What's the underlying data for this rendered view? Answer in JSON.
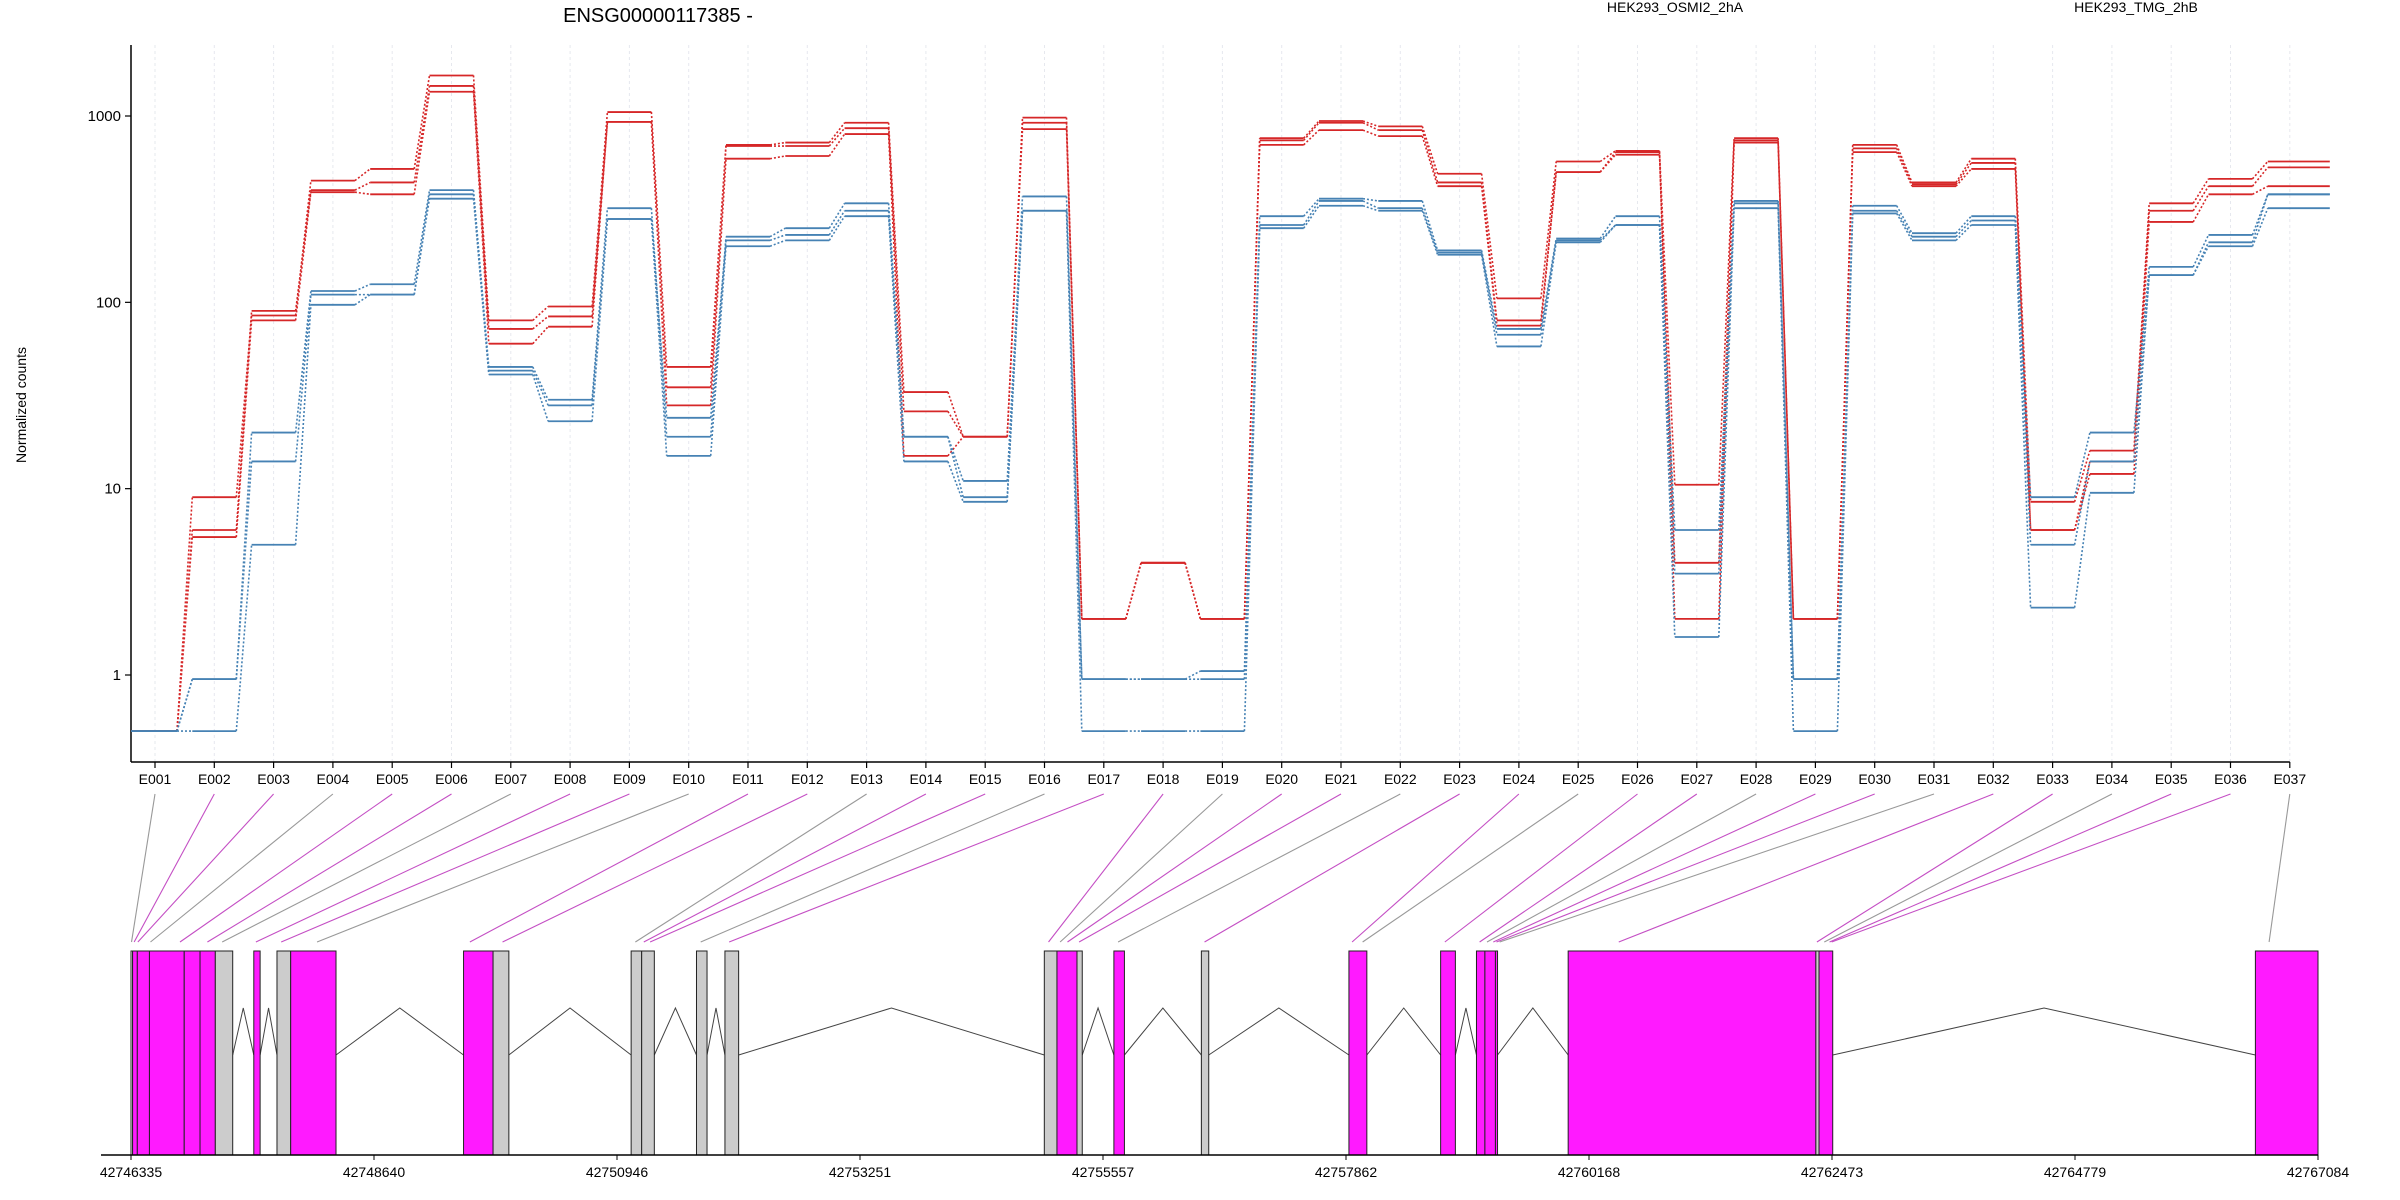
{
  "chart_data": {
    "type": "line",
    "title": "ENSG00000117385 -",
    "ylabel": "Normalized counts",
    "yscale": "log",
    "ylim": [
      0.5,
      2300
    ],
    "yticks": [
      1,
      10,
      100,
      1000
    ],
    "ytick_labels": [
      "1",
      "10",
      "100",
      "1000"
    ],
    "categories": [
      "E001",
      "E002",
      "E003",
      "E004",
      "E005",
      "E006",
      "E007",
      "E008",
      "E009",
      "E010",
      "E011",
      "E012",
      "E013",
      "E014",
      "E015",
      "E016",
      "E017",
      "E018",
      "E019",
      "E020",
      "E021",
      "E022",
      "E023",
      "E024",
      "E025",
      "E026",
      "E027",
      "E028",
      "E029",
      "E030",
      "E031",
      "E032",
      "E033",
      "E034",
      "E035",
      "E036",
      "E037"
    ],
    "legend": [
      {
        "name": "HEK293_OSMI2_2hA",
        "color": "#d62728"
      },
      {
        "name": "HEK293_TMG_2hB",
        "color": "#4682b4"
      }
    ],
    "series": [
      {
        "group": "HEK293_OSMI2_2hA",
        "color": "#d62728",
        "values": [
          0.5,
          9,
          85,
          450,
          520,
          1650,
          80,
          95,
          1050,
          45,
          700,
          720,
          920,
          33,
          19,
          980,
          2,
          4,
          2,
          760,
          940,
          880,
          490,
          105,
          570,
          650,
          10.5,
          760,
          2,
          700,
          440,
          590,
          8.5,
          16,
          340,
          460,
          570
        ]
      },
      {
        "group": "HEK293_OSMI2_2hA",
        "color": "#d62728",
        "values": [
          0.5,
          6,
          90,
          400,
          440,
          1450,
          72,
          84,
          930,
          35,
          690,
          690,
          860,
          26,
          19,
          920,
          2,
          4,
          2,
          740,
          920,
          840,
          440,
          80,
          500,
          620,
          4,
          740,
          2,
          670,
          430,
          560,
          6,
          14,
          310,
          420,
          530
        ]
      },
      {
        "group": "HEK293_OSMI2_2hA",
        "color": "#d62728",
        "values": [
          0.5,
          5.5,
          80,
          390,
          380,
          1350,
          60,
          74,
          930,
          28,
          590,
          610,
          800,
          15,
          19,
          850,
          2,
          4,
          2,
          700,
          840,
          780,
          420,
          75,
          500,
          640,
          2,
          720,
          2,
          640,
          420,
          520,
          6,
          12,
          270,
          380,
          420
        ]
      },
      {
        "group": "HEK293_TMG_2hB",
        "color": "#4682b4",
        "values": [
          0.5,
          0.95,
          20,
          115,
          125,
          400,
          45,
          30,
          320,
          19,
          225,
          250,
          340,
          19,
          11,
          370,
          0.95,
          0.95,
          1.05,
          290,
          360,
          350,
          190,
          72,
          220,
          290,
          6,
          350,
          0.95,
          330,
          235,
          290,
          9,
          20,
          155,
          230,
          380
        ]
      },
      {
        "group": "HEK293_TMG_2hB",
        "color": "#4682b4",
        "values": [
          0.5,
          0.95,
          14,
          110,
          110,
          380,
          43,
          28,
          280,
          24,
          215,
          230,
          310,
          19,
          9,
          310,
          0.95,
          0.95,
          0.95,
          260,
          350,
          320,
          185,
          67,
          215,
          260,
          3.5,
          340,
          0.95,
          310,
          225,
          275,
          5,
          14,
          140,
          210,
          380
        ]
      },
      {
        "group": "HEK293_TMG_2hB",
        "color": "#4682b4",
        "values": [
          0.5,
          0.5,
          5,
          97,
          110,
          360,
          41,
          23,
          280,
          15,
          200,
          215,
          290,
          14,
          8.5,
          310,
          0.5,
          0.5,
          0.5,
          250,
          330,
          310,
          180,
          58,
          210,
          260,
          1.6,
          320,
          0.5,
          300,
          215,
          260,
          2.3,
          9.5,
          140,
          200,
          320
        ]
      }
    ],
    "gene_model": {
      "coordinate_labels": [
        "42746335",
        "42748640",
        "42750946",
        "42753251",
        "42755557",
        "42757862",
        "42760168",
        "42762473",
        "42764779",
        "42767084"
      ],
      "coord_min": 42746335,
      "coord_max": 42767084,
      "bins": [
        {
          "start": 42746335,
          "end": 42746350,
          "fill": "#ffffff"
        },
        {
          "start": 42746350,
          "end": 42746395,
          "fill": "#ff1aff"
        },
        {
          "start": 42746395,
          "end": 42746510,
          "fill": "#ff1aff"
        },
        {
          "start": 42746510,
          "end": 42746840,
          "fill": "#ff1aff"
        },
        {
          "start": 42746840,
          "end": 42746990,
          "fill": "#ff1aff"
        },
        {
          "start": 42746990,
          "end": 42747135,
          "fill": "#ff1aff"
        },
        {
          "start": 42747135,
          "end": 42747300,
          "fill": "#cccccc"
        },
        {
          "start": 42747500,
          "end": 42747560,
          "fill": "#ff1aff"
        },
        {
          "start": 42747720,
          "end": 42747850,
          "fill": "#cccccc"
        },
        {
          "start": 42747850,
          "end": 42748280,
          "fill": "#ff1aff"
        },
        {
          "start": 42749490,
          "end": 42749770,
          "fill": "#ff1aff"
        },
        {
          "start": 42749770,
          "end": 42749920,
          "fill": "#cccccc"
        },
        {
          "start": 42751080,
          "end": 42751180,
          "fill": "#cccccc"
        },
        {
          "start": 42751180,
          "end": 42751300,
          "fill": "#cccccc"
        },
        {
          "start": 42751700,
          "end": 42751800,
          "fill": "#cccccc"
        },
        {
          "start": 42751970,
          "end": 42752100,
          "fill": "#cccccc"
        },
        {
          "start": 42755000,
          "end": 42755120,
          "fill": "#cccccc"
        },
        {
          "start": 42755120,
          "end": 42755310,
          "fill": "#ff1aff"
        },
        {
          "start": 42755310,
          "end": 42755360,
          "fill": "#cccccc"
        },
        {
          "start": 42755660,
          "end": 42755760,
          "fill": "#ff1aff"
        },
        {
          "start": 42756490,
          "end": 42756560,
          "fill": "#cccccc"
        },
        {
          "start": 42757890,
          "end": 42758060,
          "fill": "#ff1aff"
        },
        {
          "start": 42758760,
          "end": 42758900,
          "fill": "#ff1aff"
        },
        {
          "start": 42759100,
          "end": 42759180,
          "fill": "#ff1aff"
        },
        {
          "start": 42759180,
          "end": 42759280,
          "fill": "#ff1aff"
        },
        {
          "start": 42759280,
          "end": 42759300,
          "fill": "#ff1aff"
        },
        {
          "start": 42759970,
          "end": 42762320,
          "fill": "#ff1aff"
        },
        {
          "start": 42762320,
          "end": 42762350,
          "fill": "#cccccc"
        },
        {
          "start": 42762350,
          "end": 42762480,
          "fill": "#ff1aff"
        },
        {
          "start": 42766490,
          "end": 42767084,
          "fill": "#ff1aff"
        }
      ],
      "exon_map": [
        {
          "exon": "E001",
          "coord": 42746340
        },
        {
          "exon": "E002",
          "coord": 42746365
        },
        {
          "exon": "E003",
          "coord": 42746400
        },
        {
          "exon": "E004",
          "coord": 42746520
        },
        {
          "exon": "E005",
          "coord": 42746800
        },
        {
          "exon": "E006",
          "coord": 42747060
        },
        {
          "exon": "E007",
          "coord": 42747200
        },
        {
          "exon": "E008",
          "coord": 42747520
        },
        {
          "exon": "E009",
          "coord": 42747760
        },
        {
          "exon": "E010",
          "coord": 42748100
        },
        {
          "exon": "E011",
          "coord": 42749550
        },
        {
          "exon": "E012",
          "coord": 42749860
        },
        {
          "exon": "E013",
          "coord": 42751120
        },
        {
          "exon": "E014",
          "coord": 42751200
        },
        {
          "exon": "E015",
          "coord": 42751260
        },
        {
          "exon": "E016",
          "coord": 42751740
        },
        {
          "exon": "E017",
          "coord": 42752010
        },
        {
          "exon": "E018",
          "coord": 42755040
        },
        {
          "exon": "E019",
          "coord": 42755150
        },
        {
          "exon": "E020",
          "coord": 42755220
        },
        {
          "exon": "E021",
          "coord": 42755330
        },
        {
          "exon": "E022",
          "coord": 42755700
        },
        {
          "exon": "E023",
          "coord": 42756520
        },
        {
          "exon": "E024",
          "coord": 42757920
        },
        {
          "exon": "E025",
          "coord": 42758020
        },
        {
          "exon": "E026",
          "coord": 42758800
        },
        {
          "exon": "E027",
          "coord": 42759130
        },
        {
          "exon": "E028",
          "coord": 42759200
        },
        {
          "exon": "E029",
          "coord": 42759260
        },
        {
          "exon": "E030",
          "coord": 42759290
        },
        {
          "exon": "E031",
          "coord": 42759320
        },
        {
          "exon": "E032",
          "coord": 42760450
        },
        {
          "exon": "E033",
          "coord": 42762330
        },
        {
          "exon": "E034",
          "coord": 42762400
        },
        {
          "exon": "E035",
          "coord": 42762450
        },
        {
          "exon": "E036",
          "coord": 42762470
        },
        {
          "exon": "E037",
          "coord": 42766620
        }
      ]
    }
  }
}
